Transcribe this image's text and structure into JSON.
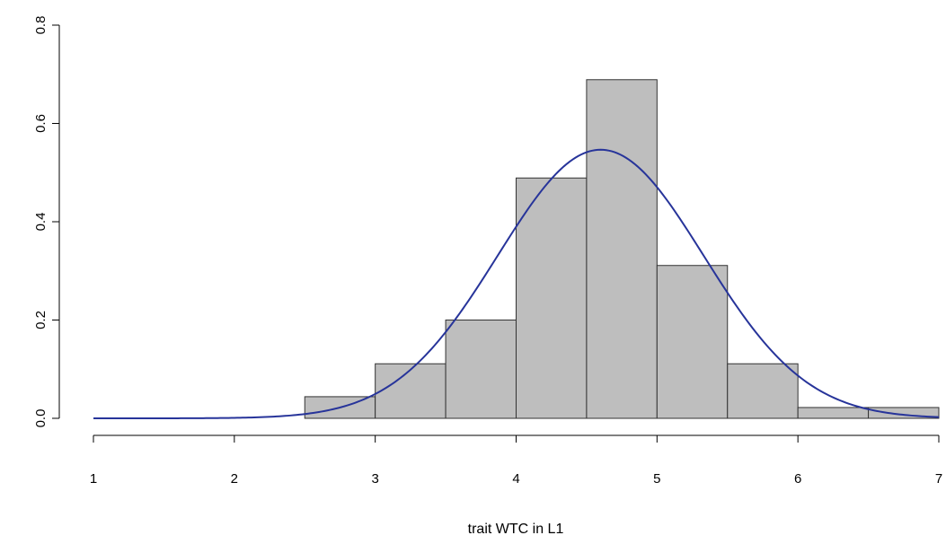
{
  "chart_data": {
    "type": "bar",
    "title": "",
    "xlabel": "trait WTC in L1",
    "ylabel": "",
    "xlim": [
      1,
      7
    ],
    "ylim": [
      0,
      0.8
    ],
    "x_ticks": [
      "1",
      "2",
      "3",
      "4",
      "5",
      "6",
      "7"
    ],
    "y_ticks": [
      "0.0",
      "0.2",
      "0.4",
      "0.6",
      "0.8"
    ],
    "bins": [
      {
        "start": 2.5,
        "end": 3.0,
        "value": 0.044
      },
      {
        "start": 3.0,
        "end": 3.5,
        "value": 0.111
      },
      {
        "start": 3.5,
        "end": 4.0,
        "value": 0.2
      },
      {
        "start": 4.0,
        "end": 4.5,
        "value": 0.489
      },
      {
        "start": 4.5,
        "end": 5.0,
        "value": 0.689
      },
      {
        "start": 5.0,
        "end": 5.5,
        "value": 0.311
      },
      {
        "start": 5.5,
        "end": 6.0,
        "value": 0.111
      },
      {
        "start": 6.0,
        "end": 6.5,
        "value": 0.022
      },
      {
        "start": 6.5,
        "end": 7.0,
        "value": 0.022
      }
    ],
    "density_curve": {
      "type": "normal",
      "mean": 4.6,
      "sd": 0.73
    },
    "colors": {
      "bar_fill": "#bebebe",
      "bar_stroke": "#333333",
      "curve": "#27349a"
    },
    "grid": false,
    "legend": "none"
  }
}
